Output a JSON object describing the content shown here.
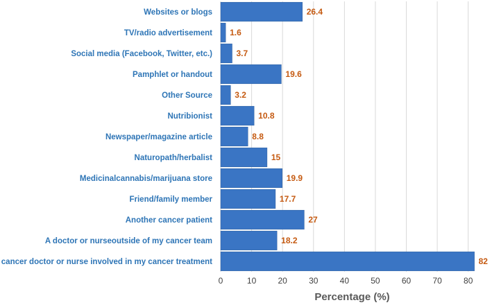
{
  "chart_data": {
    "type": "bar",
    "orientation": "horizontal",
    "categories": [
      "Websites or blogs",
      "TV/radio advertisement",
      "Social media (Facebook, Twitter, etc.)",
      "Pamphlet or handout",
      "Other Source",
      "Nutribionist",
      "Newspaper/magazine article",
      "Naturopath/herbalist",
      "Medicinalcannabis/marijuana store",
      "Friend/family member",
      "Another cancer patient",
      "A doctor or nurseoutside of my cancer team",
      "A cancer doctor or nurse involved in my cancer treatment"
    ],
    "values": [
      26.4,
      1.6,
      3.7,
      19.6,
      3.2,
      10.8,
      8.8,
      15,
      19.9,
      17.7,
      27,
      18.2,
      82
    ],
    "value_labels": [
      "26.4",
      "1.6",
      "3.7",
      "19.6",
      "3.2",
      "10.8",
      "8.8",
      "15",
      "19.9",
      "17.7",
      "27",
      "18.2",
      "82"
    ],
    "xlabel": "Percentage (%)",
    "ylabel": "",
    "xlim": [
      0,
      85
    ],
    "ticks": [
      "0",
      "10",
      "20",
      "30",
      "40",
      "50",
      "60",
      "70",
      "80"
    ],
    "grid": "vertical",
    "colors": {
      "bar": "#3a75c4",
      "category_label": "#2e75b6",
      "value_label": "#c55a11",
      "grid": "#d9d9d9"
    }
  }
}
